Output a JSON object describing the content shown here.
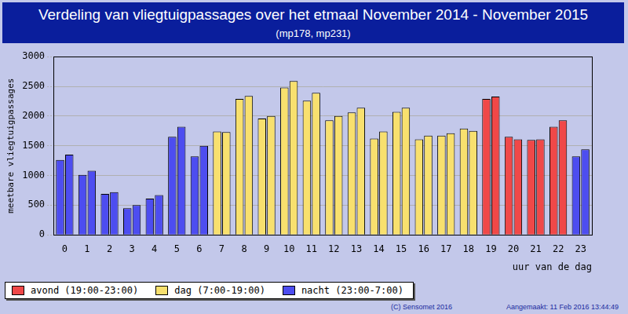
{
  "chart_data": {
    "type": "bar",
    "title": "Verdeling van vliegtuigpassages over het etmaal November 2014 - November 2015",
    "subtitle": "(mp178, mp231)",
    "x_label": "uur van de dag",
    "y_label": "meetbare vliegtuigpassages",
    "categories": [
      "0",
      "1",
      "2",
      "3",
      "4",
      "5",
      "6",
      "7",
      "8",
      "9",
      "10",
      "11",
      "12",
      "13",
      "14",
      "15",
      "16",
      "17",
      "18",
      "19",
      "20",
      "21",
      "22",
      "23"
    ],
    "series": [
      {
        "name": "mp178",
        "values": [
          1260,
          1010,
          690,
          450,
          610,
          1650,
          1320,
          1740,
          2290,
          1960,
          2480,
          2260,
          1930,
          2060,
          1620,
          2070,
          1610,
          1670,
          1790,
          2290,
          1650,
          1600,
          1820,
          1320
        ],
        "colors": [
          "#4d4df0",
          "#4d4df0",
          "#4d4df0",
          "#4d4df0",
          "#4d4df0",
          "#4d4df0",
          "#4d4df0",
          "#f8e06e",
          "#f8e06e",
          "#f8e06e",
          "#f8e06e",
          "#f8e06e",
          "#f8e06e",
          "#f8e06e",
          "#f8e06e",
          "#f8e06e",
          "#f8e06e",
          "#f8e06e",
          "#f8e06e",
          "#f04848",
          "#f04848",
          "#f04848",
          "#f04848",
          "#4d4df0"
        ]
      },
      {
        "name": "mp231",
        "values": [
          1350,
          1080,
          720,
          500,
          670,
          1820,
          1500,
          1730,
          2340,
          2000,
          2590,
          2390,
          2000,
          2140,
          1740,
          2140,
          1670,
          1710,
          1750,
          2330,
          1610,
          1610,
          1930,
          1440
        ],
        "colors": [
          "#4d4df0",
          "#4d4df0",
          "#4d4df0",
          "#4d4df0",
          "#4d4df0",
          "#4d4df0",
          "#4d4df0",
          "#f8e06e",
          "#f8e06e",
          "#f8e06e",
          "#f8e06e",
          "#f8e06e",
          "#f8e06e",
          "#f8e06e",
          "#f8e06e",
          "#f8e06e",
          "#f8e06e",
          "#f8e06e",
          "#f8e06e",
          "#f04848",
          "#f04848",
          "#f04848",
          "#f04848",
          "#4d4df0"
        ]
      }
    ],
    "legend_items": [
      {
        "name": "avond (19:00-23:00)",
        "color": "#f04848"
      },
      {
        "name": "dag (7:00-19:00)",
        "color": "#f8e06e"
      },
      {
        "name": "nacht (23:00-7:00)",
        "color": "#4d4df0"
      }
    ],
    "footer": [
      "(C) Sensomet 2016",
      "Aangemaakt: 11 Feb 2016 13:44:49"
    ],
    "ylim": [
      0,
      3000
    ],
    "yticks": [
      0,
      500,
      1000,
      1500,
      2000,
      2500,
      3000
    ],
    "grid": true,
    "legend": "bottom"
  }
}
